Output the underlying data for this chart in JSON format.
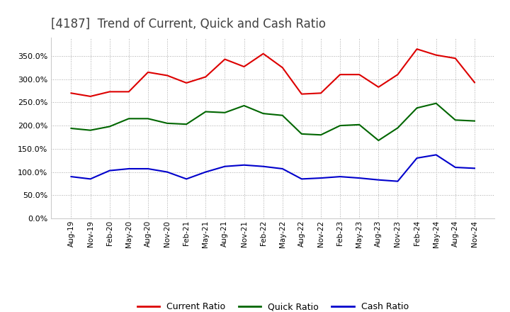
{
  "title": "[4187]  Trend of Current, Quick and Cash Ratio",
  "title_fontsize": 12,
  "title_color": "#404040",
  "background_color": "#ffffff",
  "plot_bg_color": "#ffffff",
  "grid_color": "#aaaaaa",
  "ylim": [
    0,
    390
  ],
  "yticks": [
    0,
    50,
    100,
    150,
    200,
    250,
    300,
    350
  ],
  "x_labels": [
    "Aug-19",
    "Nov-19",
    "Feb-20",
    "May-20",
    "Aug-20",
    "Nov-20",
    "Feb-21",
    "May-21",
    "Aug-21",
    "Nov-21",
    "Feb-22",
    "May-22",
    "Aug-22",
    "Nov-22",
    "Feb-23",
    "May-23",
    "Aug-23",
    "Nov-23",
    "Feb-24",
    "May-24",
    "Aug-24",
    "Nov-24"
  ],
  "current_ratio": [
    270,
    263,
    273,
    273,
    315,
    308,
    292,
    305,
    343,
    327,
    355,
    325,
    268,
    270,
    310,
    310,
    283,
    310,
    365,
    352,
    345,
    293
  ],
  "quick_ratio": [
    194,
    190,
    198,
    215,
    215,
    205,
    203,
    230,
    228,
    243,
    226,
    222,
    182,
    180,
    200,
    202,
    168,
    195,
    238,
    248,
    212,
    210
  ],
  "cash_ratio": [
    90,
    85,
    103,
    107,
    107,
    100,
    85,
    100,
    112,
    115,
    112,
    107,
    85,
    87,
    90,
    87,
    83,
    80,
    130,
    137,
    110,
    108
  ],
  "current_color": "#dd0000",
  "quick_color": "#006600",
  "cash_color": "#0000cc",
  "line_width": 1.5,
  "legend_labels": [
    "Current Ratio",
    "Quick Ratio",
    "Cash Ratio"
  ],
  "legend_colors": [
    "#dd0000",
    "#006600",
    "#0000cc"
  ]
}
